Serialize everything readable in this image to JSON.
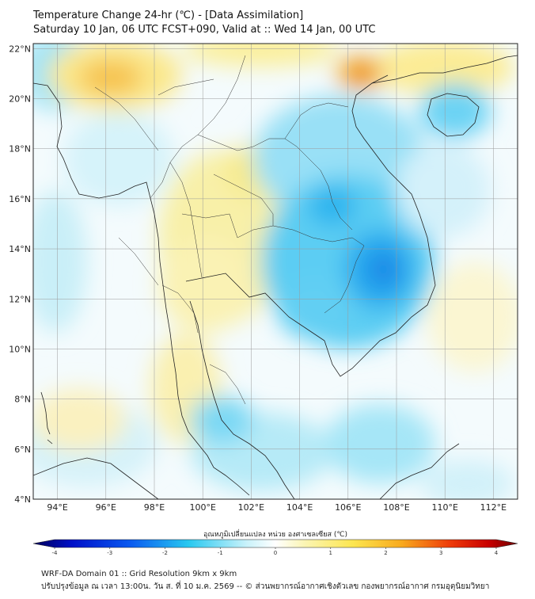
{
  "header": {
    "title_line1": "Temperature Change 24-hr (℃) - [Data Assimilation]",
    "title_line2": "Saturday 10 Jan, 06 UTC FCST+090, Valid at :: Wed 14 Jan, 00 UTC"
  },
  "axes": {
    "lon_labels": [
      "94°E",
      "96°E",
      "98°E",
      "100°E",
      "102°E",
      "104°E",
      "106°E",
      "108°E",
      "110°E",
      "112°E"
    ],
    "lat_labels": [
      "22°N",
      "20°N",
      "18°N",
      "16°N",
      "14°N",
      "12°N",
      "10°N",
      "8°N",
      "6°N",
      "4°N"
    ],
    "lon_values": [
      94,
      96,
      98,
      100,
      102,
      104,
      106,
      108,
      110,
      112
    ],
    "lat_values": [
      22,
      20,
      18,
      16,
      14,
      12,
      10,
      8,
      6,
      4
    ],
    "lon_range": [
      93,
      113
    ],
    "lat_range": [
      4,
      22.2
    ]
  },
  "colorbar": {
    "label": "อุณหภูมิเปลี่ยนแปลง หน่วย องศาเซลเซียส (℃)",
    "ticks": [
      "-4",
      "-3",
      "-2",
      "-1",
      "0",
      "1",
      "2",
      "3",
      "4"
    ],
    "tick_values": [
      -4,
      -3,
      -2,
      -1,
      0,
      1,
      2,
      3,
      4
    ]
  },
  "footer": {
    "line1": "WRF-DA Domain 01 :: Grid Resolution 9km x 9km",
    "line2": "ปรับปรุงข้อมูล ณ เวลา 13:00น. วัน ส. ที่ 10 ม.ค. 2569 -- © ส่วนพยากรณ์อากาศเชิงตัวเลข กองพยากรณ์อากาศ กรมอุตุนิยมวิทยา"
  },
  "colors": {
    "neutral": "#ffffff",
    "cold": "#0050e6",
    "warm": "#e64000",
    "border": "#222222",
    "grid": "#9a9a9a"
  }
}
